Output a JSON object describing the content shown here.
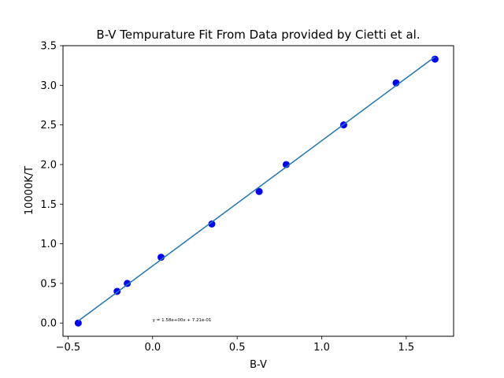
{
  "chart_data": {
    "type": "scatter",
    "title": "B-V Tempurature Fit From Data provided by Cietti et al.",
    "xlabel": "B-V",
    "ylabel": "10000K/T",
    "xlim": [
      -0.53,
      1.78
    ],
    "ylim": [
      -0.167,
      3.5
    ],
    "xticks": [
      -0.5,
      0.0,
      0.5,
      1.0,
      1.5
    ],
    "xtick_labels": [
      "−0.5",
      "0.0",
      "0.5",
      "1.0",
      "1.5"
    ],
    "yticks": [
      0.0,
      0.5,
      1.0,
      1.5,
      2.0,
      2.5,
      3.0,
      3.5
    ],
    "ytick_labels": [
      "0.0",
      "0.5",
      "1.0",
      "1.5",
      "2.0",
      "2.5",
      "3.0",
      "3.5"
    ],
    "grid": false,
    "legend": "none",
    "series": [
      {
        "kind": "scatter",
        "color": "#0000ff",
        "points": [
          {
            "x": -0.44,
            "y": 0.0
          },
          {
            "x": -0.21,
            "y": 0.4
          },
          {
            "x": -0.15,
            "y": 0.5
          },
          {
            "x": 0.05,
            "y": 0.83
          },
          {
            "x": 0.35,
            "y": 1.25
          },
          {
            "x": 0.63,
            "y": 1.66
          },
          {
            "x": 0.79,
            "y": 2.0
          },
          {
            "x": 1.13,
            "y": 2.5
          },
          {
            "x": 1.44,
            "y": 3.03
          },
          {
            "x": 1.67,
            "y": 3.33
          }
        ]
      },
      {
        "kind": "line",
        "color": "#1f77b4",
        "slope": 1.58,
        "intercept": 0.721,
        "x_range": [
          -0.44,
          1.67
        ]
      }
    ],
    "annotation": {
      "text": "y = 1.58e+00x + 7.21e-01",
      "x": 0.0,
      "y": 0.02
    }
  }
}
